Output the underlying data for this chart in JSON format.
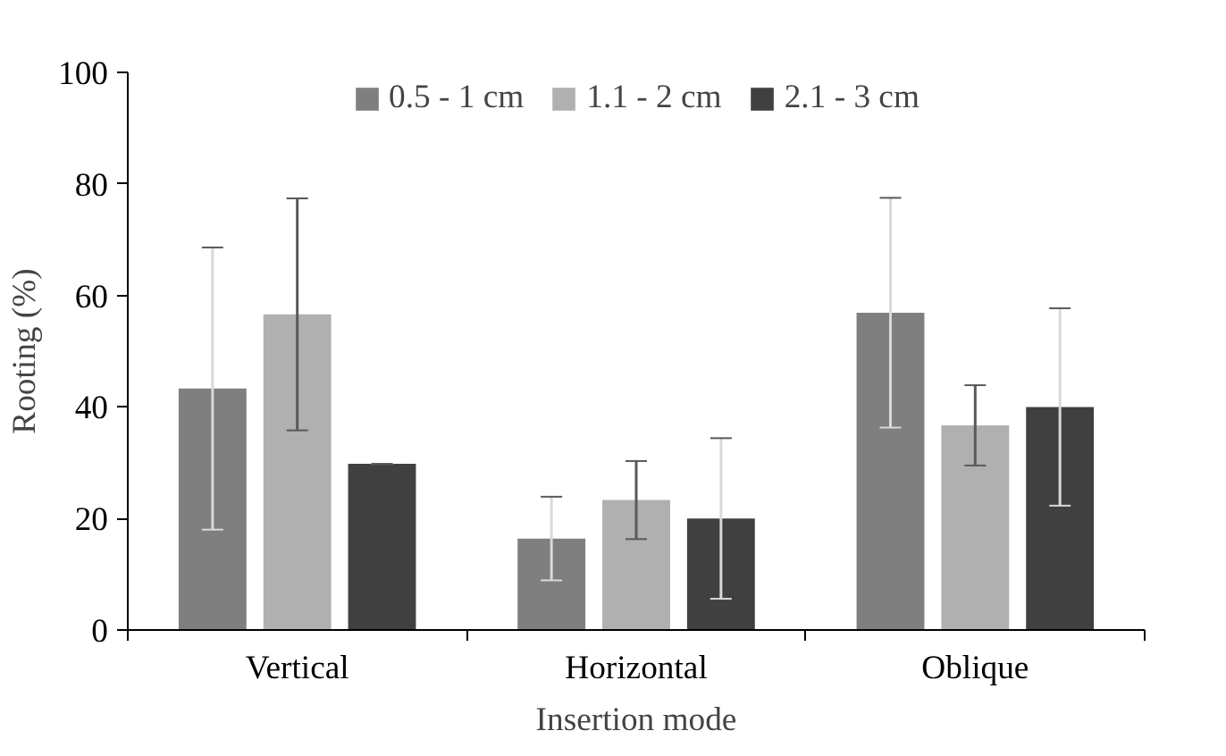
{
  "chart_data": {
    "type": "bar",
    "xlabel": "Insertion mode",
    "ylabel": "Rooting (%)",
    "categories": [
      "Vertical",
      "Horizontal",
      "Oblique"
    ],
    "series": [
      {
        "name": "0.5 - 1 cm",
        "color": "#7f7f7f",
        "values": [
          43.3,
          16.4,
          56.9
        ],
        "errors": [
          25.3,
          7.5,
          20.6
        ]
      },
      {
        "name": "1.1 - 2 cm",
        "color": "#b0b0b0",
        "values": [
          56.6,
          23.3,
          36.7
        ],
        "errors": [
          20.8,
          7.0,
          7.2
        ]
      },
      {
        "name": "2.1 - 3 cm",
        "color": "#404040",
        "values": [
          29.8,
          20.0,
          40.0
        ],
        "errors": [
          0,
          14.4,
          17.7
        ]
      }
    ],
    "ylim": [
      0,
      100
    ],
    "yticks": [
      0,
      20,
      40,
      60,
      80,
      100
    ],
    "grid": false,
    "legend": "top"
  }
}
